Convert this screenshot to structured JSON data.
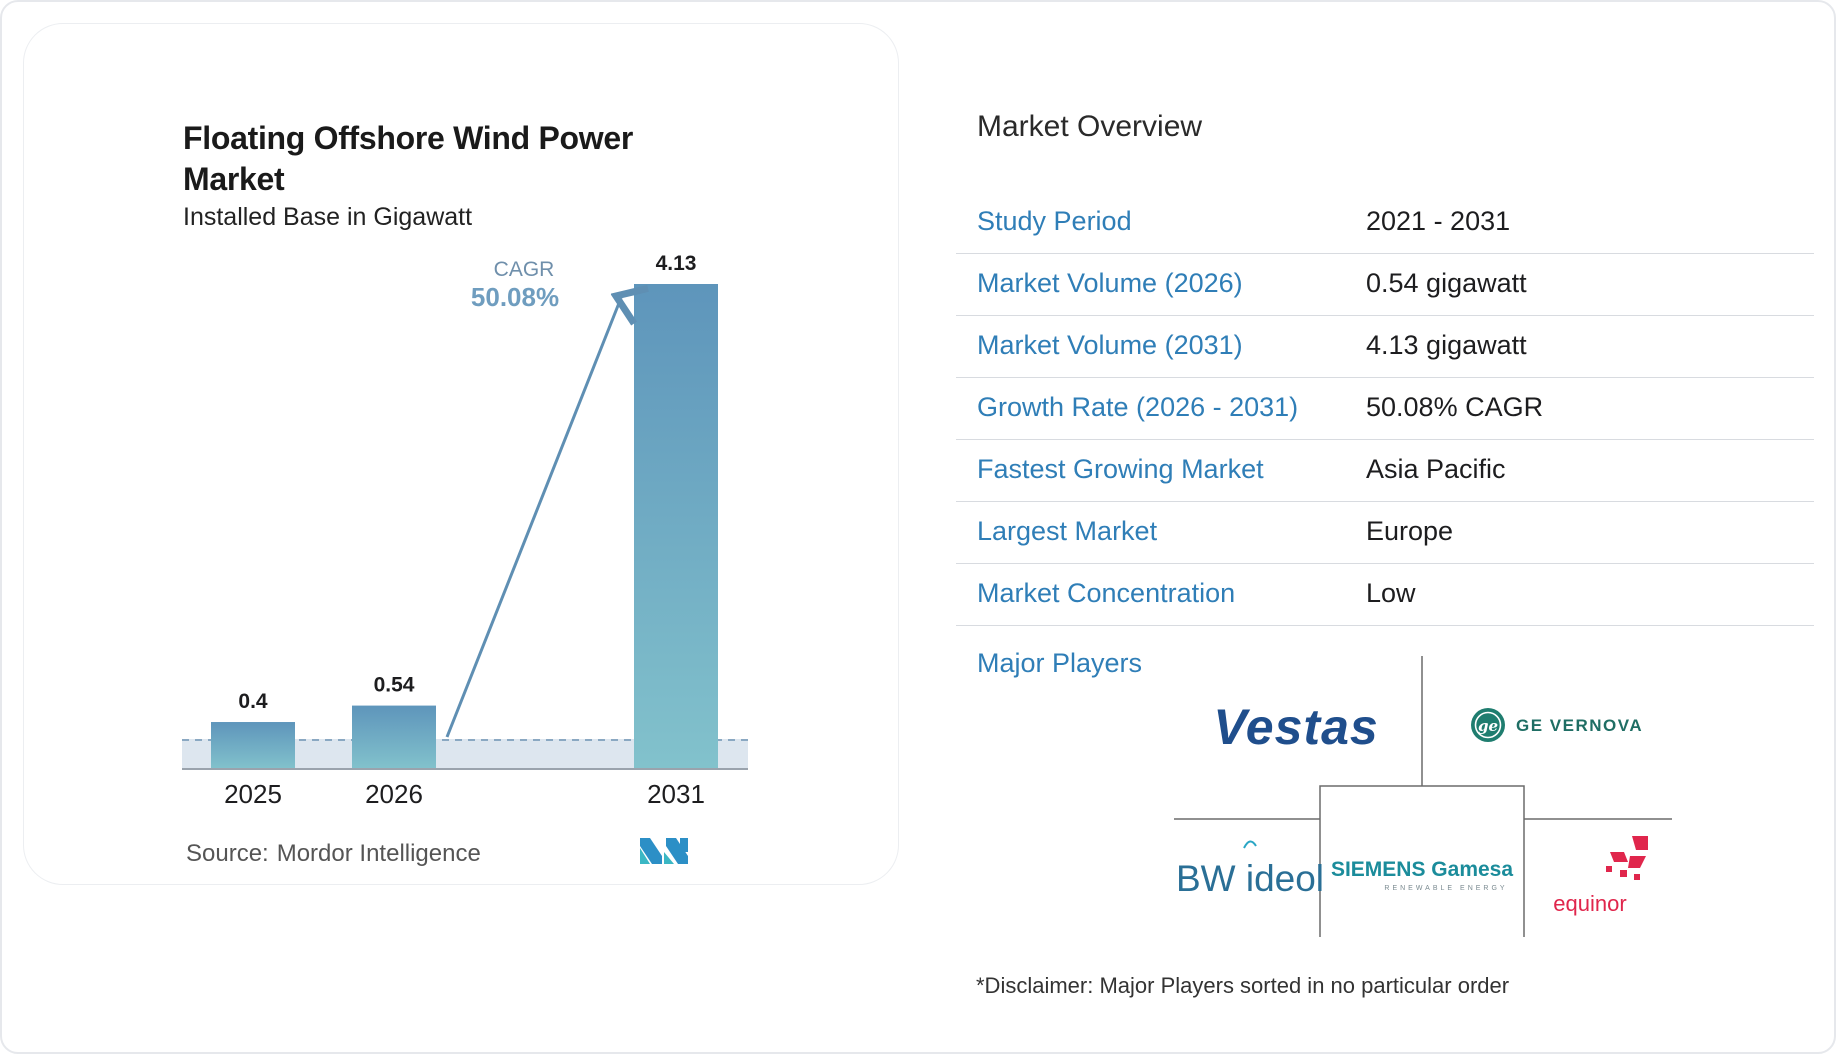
{
  "chart": {
    "title": "Floating Offshore Wind Power Market",
    "subtitle": "Installed Base in Gigawatt",
    "cagr_label": "CAGR",
    "cagr_value": "50.08%",
    "source_label": "Source:",
    "source_value": "Mordor Intelligence"
  },
  "chart_data": {
    "type": "bar",
    "title": "Floating Offshore Wind Power Market",
    "subtitle": "Installed Base in Gigawatt",
    "categories": [
      "2025",
      "2026",
      "2031"
    ],
    "values": [
      0.4,
      0.54,
      4.13
    ],
    "value_labels": [
      "0.4",
      "0.54",
      "4.13"
    ],
    "xlabel": "",
    "ylabel": "",
    "ylim": [
      0,
      4.13
    ],
    "grid": false,
    "annotation": "CAGR 50.08%",
    "colors": {
      "bar_top": "#5e95bb",
      "bar_bottom": "#82c2cc",
      "band": "#dde6ef",
      "arrow": "#5f8fb3"
    }
  },
  "overview": {
    "title": "Market Overview",
    "rows": [
      {
        "key": "Study Period",
        "value": "2021 - 2031"
      },
      {
        "key": "Market Volume (2026)",
        "value": "0.54 gigawatt"
      },
      {
        "key": "Market Volume (2031)",
        "value": "4.13 gigawatt"
      },
      {
        "key": "Growth Rate (2026 - 2031)",
        "value": "50.08% CAGR"
      },
      {
        "key": "Fastest Growing Market",
        "value": "Asia Pacific"
      },
      {
        "key": "Largest Market",
        "value": "Europe"
      },
      {
        "key": "Market Concentration",
        "value": "Low"
      }
    ],
    "players_label": "Major Players",
    "players": [
      {
        "name": "Vestas",
        "icon": "vestas-logo"
      },
      {
        "name": "GE VERNOVA",
        "icon": "ge-vernova-logo"
      },
      {
        "name": "BW ideol",
        "icon": "bw-ideol-logo"
      },
      {
        "name": "SIEMENS Gamesa",
        "icon": "siemens-gamesa-logo"
      },
      {
        "name": "equinor",
        "icon": "equinor-logo"
      }
    ],
    "siemens_tagline": "RENEWABLE ENERGY",
    "disclaimer": "*Disclaimer: Major Players sorted in no particular order"
  },
  "colors": {
    "accent": "#2f7eb7",
    "divider": "#d8dbe0"
  }
}
